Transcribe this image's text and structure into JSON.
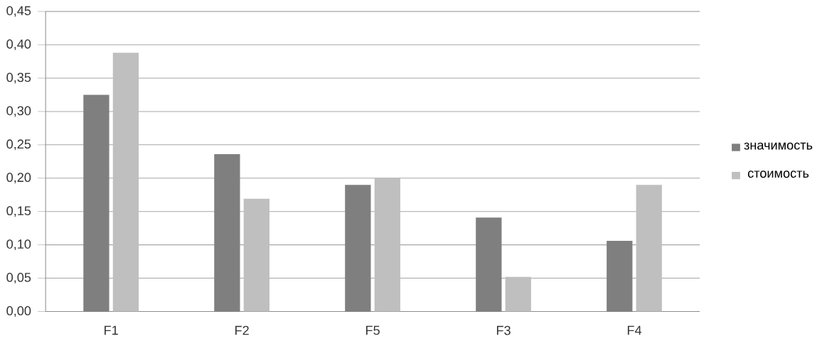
{
  "chart_data": {
    "type": "bar",
    "categories": [
      "F1",
      "F2",
      "F5",
      "F3",
      "F4"
    ],
    "series": [
      {
        "name": "значимость",
        "color": "#7f7f7f",
        "values": [
          0.325,
          0.236,
          0.19,
          0.141,
          0.106
        ]
      },
      {
        "name": "стоимость",
        "color": "#bfbfbf",
        "values": [
          0.388,
          0.169,
          0.2,
          0.052,
          0.19
        ]
      }
    ],
    "ylim": [
      0,
      0.45
    ],
    "yticks": [
      {
        "value": 0,
        "label": "0,00"
      },
      {
        "value": 0.05,
        "label": "0,05"
      },
      {
        "value": 0.1,
        "label": "0,10"
      },
      {
        "value": 0.15,
        "label": "0,15"
      },
      {
        "value": 0.2,
        "label": "0,20"
      },
      {
        "value": 0.25,
        "label": "0,25"
      },
      {
        "value": 0.3,
        "label": "0,30"
      },
      {
        "value": 0.35,
        "label": "0,35"
      },
      {
        "value": 0.4,
        "label": "0,40"
      },
      {
        "value": 0.45,
        "label": "0,45"
      }
    ],
    "grid": "y",
    "legend": "right"
  }
}
